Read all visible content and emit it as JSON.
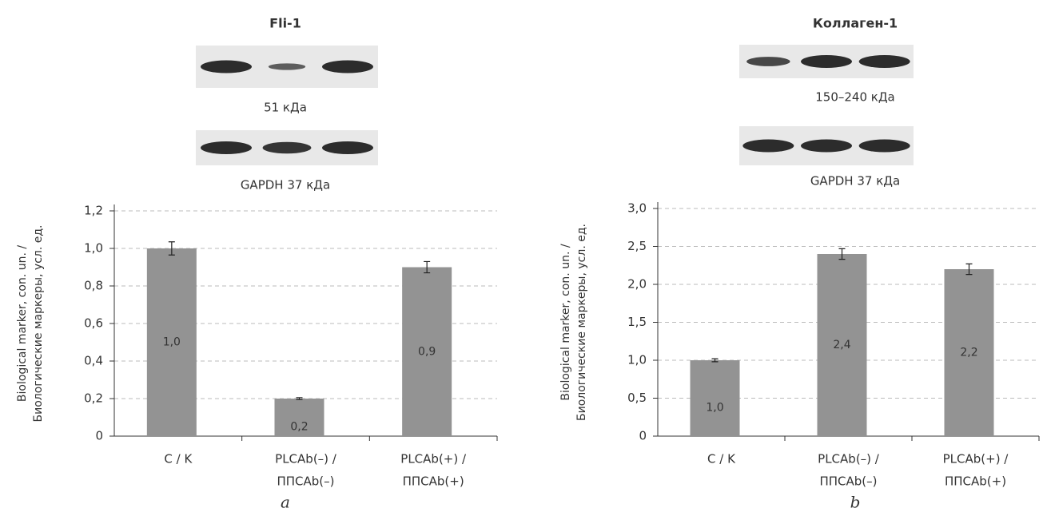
{
  "chart_data": [
    {
      "type": "bar",
      "title": "Fli-1",
      "annotations": [
        "51 кДа",
        "GAPDH 37 кДа"
      ],
      "panel_label": "a",
      "ylabel": [
        "Biological marker, con. un. /",
        "Биологические маркеры, усл. ед."
      ],
      "categories": [
        [
          "C / K"
        ],
        [
          "PLCAb(–) /",
          "ППСAb(–)"
        ],
        [
          "PLCAb(+) /",
          "ППСAb(+)"
        ]
      ],
      "values": [
        1.0,
        0.2,
        0.9
      ],
      "value_labels": [
        "1,0",
        "0,2",
        "0,9"
      ],
      "errors": [
        0.035,
        0.005,
        0.03
      ],
      "color": "#939393",
      "ylim": [
        0,
        1.2
      ],
      "yticks": [
        0,
        {
          "value": 0.2,
          "label": "0,2"
        },
        {
          "value": 0.4,
          "label": "0,4"
        },
        {
          "value": 0.6,
          "label": "0,6"
        },
        {
          "value": 0.8,
          "label": "0,8"
        },
        {
          "value": 1.0,
          "label": "1,0"
        },
        {
          "value": 1.2,
          "label": "1,2"
        }
      ],
      "grid": true
    },
    {
      "type": "bar",
      "title": "Коллаген-1",
      "annotations": [
        "150–240 кДа",
        "GAPDH 37 кДа"
      ],
      "panel_label": "b",
      "ylabel": [
        "Biological marker, con. un. /",
        "Биологические маркеры, усл. ед."
      ],
      "categories": [
        [
          "C / K"
        ],
        [
          "PLCAb(–) /",
          "ППСAb(–)"
        ],
        [
          "PLCAb(+) /",
          "ППСAb(+)"
        ]
      ],
      "values": [
        1.0,
        2.4,
        2.2
      ],
      "value_labels": [
        "1,0",
        "2,4",
        "2,2"
      ],
      "errors": [
        0.02,
        0.07,
        0.07
      ],
      "color": "#939393",
      "ylim": [
        0,
        3.0
      ],
      "yticks": [
        0,
        {
          "value": 0.5,
          "label": "0,5"
        },
        {
          "value": 1.0,
          "label": "1,0"
        },
        {
          "value": 1.5,
          "label": "1,5"
        },
        {
          "value": 2.0,
          "label": "2,0"
        },
        {
          "value": 2.5,
          "label": "2,5"
        },
        {
          "value": 3.0,
          "label": "3,0"
        }
      ],
      "grid": true
    }
  ]
}
